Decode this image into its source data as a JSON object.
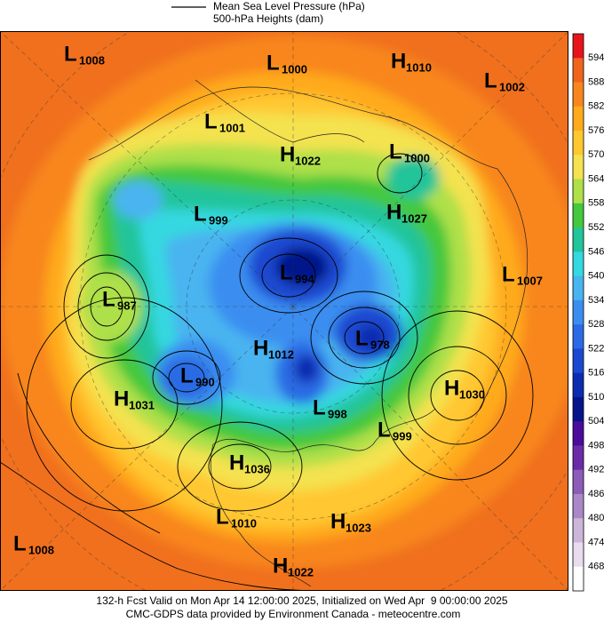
{
  "legend": {
    "pressure": "Mean Sea Level Pressure (hPa)",
    "heights": "500-hPa Heights (dam)"
  },
  "colorbar": {
    "labels": [
      594,
      588,
      582,
      576,
      570,
      564,
      558,
      552,
      546,
      540,
      534,
      528,
      522,
      516,
      510,
      504,
      498,
      492,
      486,
      480,
      474,
      468
    ],
    "colors": [
      "#e8141c",
      "#f0641e",
      "#f8861f",
      "#ffaa1a",
      "#ffc830",
      "#f4e250",
      "#aee048",
      "#44c83c",
      "#22c49a",
      "#34d8e0",
      "#48b4f0",
      "#3a8ef0",
      "#2a6ae4",
      "#1a48d0",
      "#0c2cb0",
      "#06148a",
      "#4a0c9a",
      "#6a2ca8",
      "#8c5cb8",
      "#aa88c8",
      "#cbb6da",
      "#e8dcee",
      "#ffffff"
    ]
  },
  "centers": [
    {
      "type": "L",
      "value": "1008"
    },
    {
      "type": "L",
      "value": "1000"
    },
    {
      "type": "H",
      "value": "1010"
    },
    {
      "type": "L",
      "value": "1002"
    },
    {
      "type": "L",
      "value": "1001"
    },
    {
      "type": "H",
      "value": "1022"
    },
    {
      "type": "L",
      "value": "1000"
    },
    {
      "type": "L",
      "value": "999"
    },
    {
      "type": "H",
      "value": "1027"
    },
    {
      "type": "L",
      "value": "994"
    },
    {
      "type": "L",
      "value": "1007"
    },
    {
      "type": "L",
      "value": "987"
    },
    {
      "type": "L",
      "value": "978"
    },
    {
      "type": "H",
      "value": "1012"
    },
    {
      "type": "L",
      "value": "990"
    },
    {
      "type": "H",
      "value": "1030"
    },
    {
      "type": "H",
      "value": "1031"
    },
    {
      "type": "L",
      "value": "998"
    },
    {
      "type": "L",
      "value": "999"
    },
    {
      "type": "H",
      "value": "1036"
    },
    {
      "type": "L",
      "value": "1010"
    },
    {
      "type": "H",
      "value": "1023"
    },
    {
      "type": "L",
      "value": "1008"
    },
    {
      "type": "H",
      "value": "1022"
    }
  ],
  "footer": {
    "line1": "132-h Fcst Valid on Mon Apr 14 12:00:00 2025, Initialized on Wed Apr  9 00:00:00 2025",
    "line2": "CMC-GDPS data provided by Environment Canada - meteocentre.com"
  }
}
